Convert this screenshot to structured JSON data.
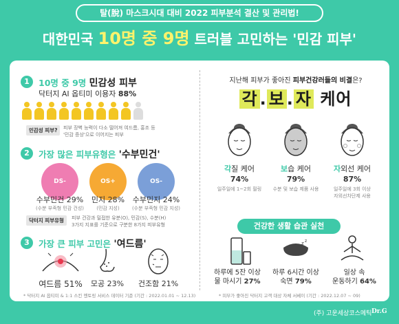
{
  "banner": "탈(脫) 마스크시대 대비 2022 피부분석 결산 및 관리법!",
  "headline": {
    "pre": "대한민국 ",
    "highlight": "10명 중 9명",
    "post": " 트러블 고민하는 '민감 피부'"
  },
  "section1": {
    "number": "1",
    "title_accent": "10명 중 9명 ",
    "title_dark": "민감성 피부",
    "sub_pre": "닥터지 AI 옵티미 이용자 ",
    "sub_value": "88%",
    "people_total": 10,
    "people_highlight": 9,
    "tag": "민감성 피부?",
    "note_line1": "피부 장벽 능력이 다소 떨어져 여드름, 홍조 등",
    "note_line2": "'민감 증상'으로 이어지는 피부"
  },
  "section2": {
    "number": "2",
    "title_accent": "가장 많은 피부유형은 ",
    "title_dark": "'수부민건'",
    "types": [
      {
        "code": "DS-",
        "label": "수부민건 29%",
        "desc": "(수분 부족형 민감 건성)",
        "color": "#ef7db2"
      },
      {
        "code": "OS+",
        "label": "민지 28%",
        "desc": "(민감 지성)",
        "color": "#f6a934"
      },
      {
        "code": "OS-",
        "label": "수부민지 24%",
        "desc": "(수분 부족형 민감 지성)",
        "color": "#7b9fd8"
      }
    ],
    "tag": "닥터지 피부유형",
    "note_line1": "피부 건강과 밀접한 유분(O), 민감(S), 수분(H)",
    "note_line2": "3가지 지표를 기준으로 구분한 8가지 피부유형"
  },
  "section3": {
    "number": "3",
    "title_accent": "가장 큰 피부 고민은 ",
    "title_dark": "'여드름'",
    "items": [
      {
        "label": "여드름 51%",
        "icon": "acne-icon"
      },
      {
        "label": "모공 23%",
        "icon": "nose-pore-icon"
      },
      {
        "label": "건조함 21%",
        "icon": "dry-face-icon"
      }
    ],
    "footnote": "* 닥터지 AI 옵티미 & 1:1 스킨 멘토링 서비스 데이터 기준 (기간 : 2022.01.01 ~ 12.13)"
  },
  "right": {
    "sub_pre": "지난해 피부가 좋아진 ",
    "sub_bold": "피부건강러들의 비결",
    "sub_post": "은?",
    "kbj_chars": [
      "각",
      "보",
      "자"
    ],
    "kbj_dot": ".",
    "kbj_tail": " 케어",
    "cares": [
      {
        "accent": "각",
        "rest": "질 케어",
        "pct": "74%",
        "n1": "일주일에 1~2회 필링",
        "n2": ""
      },
      {
        "accent": "보",
        "rest": "습 케어",
        "pct": "79%",
        "n1": "수분 및 보습 제품 사용",
        "n2": ""
      },
      {
        "accent": "자",
        "rest": "외선 케어",
        "pct": "87%",
        "n1": "일주일에 3회 이상",
        "n2": "자외선차단제 사용"
      }
    ],
    "habit_title": "건강한 생활 습관 실천",
    "habits": [
      {
        "l1": "하루에 5잔 이상",
        "l2": "물 마시기 ",
        "pct": "27%",
        "icon": "water-bottle-icon"
      },
      {
        "l1": "하루 6시간 이상",
        "l2": "숙면 ",
        "pct": "79%",
        "icon": "sleep-mask-icon"
      },
      {
        "l1": "일상 속",
        "l2": "운동하기 ",
        "pct": "64%",
        "icon": "meditation-icon"
      }
    ],
    "footnote": "* 피부가 좋아진 닥터지 고객 대상 자체 서베이 (기간 : 2022.12.07 ~ 09)"
  },
  "footer": {
    "company": "(주) 고운세상코스메틱",
    "logo": "Dr.G"
  }
}
